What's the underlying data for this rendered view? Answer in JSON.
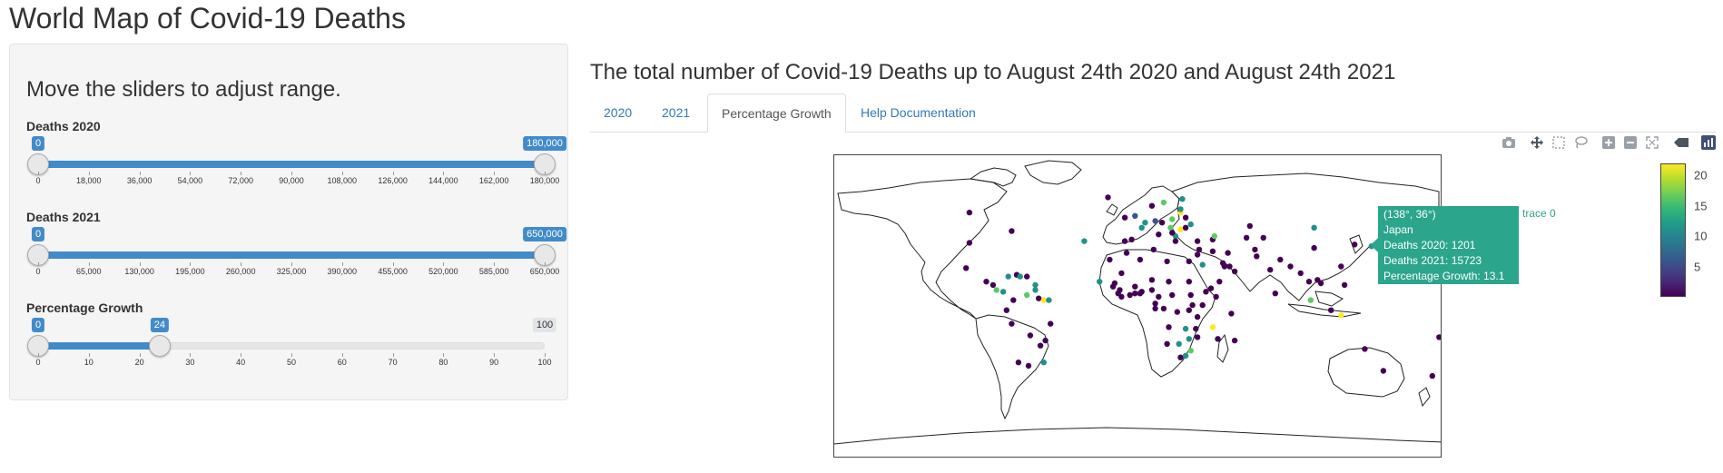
{
  "page": {
    "title": "World Map of Covid-19 Deaths"
  },
  "sidebar": {
    "heading": "Move the sliders to adjust range.",
    "sliders": [
      {
        "label": "Deaths 2020",
        "min": 0,
        "max": 180000,
        "from": 0,
        "to": 180000,
        "from_label": "0",
        "to_label": "180,000",
        "ticks": [
          "0",
          "18,000",
          "36,000",
          "54,000",
          "72,000",
          "90,000",
          "108,000",
          "126,000",
          "144,000",
          "162,000",
          "180,000"
        ]
      },
      {
        "label": "Deaths 2021",
        "min": 0,
        "max": 650000,
        "from": 0,
        "to": 650000,
        "from_label": "0",
        "to_label": "650,000",
        "ticks": [
          "0",
          "65,000",
          "130,000",
          "195,000",
          "260,000",
          "325,000",
          "390,000",
          "455,000",
          "520,000",
          "585,000",
          "650,000"
        ]
      },
      {
        "label": "Percentage Growth",
        "min": 0,
        "max": 100,
        "from": 0,
        "to": 24,
        "from_label": "0",
        "to_label": "24",
        "max_label": "100",
        "ticks": [
          "0",
          "10",
          "20",
          "30",
          "40",
          "50",
          "60",
          "70",
          "80",
          "90",
          "100"
        ]
      }
    ]
  },
  "main": {
    "heading": "The total number of Covid-19 Deaths up to August 24th 2020 and August 24th 2021",
    "tabs": [
      {
        "label": "2020",
        "active": false
      },
      {
        "label": "2021",
        "active": false
      },
      {
        "label": "Percentage Growth",
        "active": true
      },
      {
        "label": "Help Documentation",
        "active": false
      }
    ]
  },
  "modebar": {
    "icons": [
      "camera-icon",
      "pan-icon",
      "box-select-icon",
      "lasso-icon",
      "zoom-in-icon",
      "zoom-out-icon",
      "autoscale-icon",
      "hover-closest-icon",
      "plotly-logo-icon"
    ]
  },
  "chart_data": {
    "type": "scatter",
    "map": "world",
    "colorscale": "viridis",
    "color_range": [
      0,
      22
    ],
    "colorbar_ticks": [
      "20",
      "15",
      "10",
      "5"
    ],
    "colors": [
      "#440154",
      "#3b528b",
      "#21918c",
      "#5ec962",
      "#fde725"
    ],
    "points": [
      {
        "lon": -100,
        "lat": 56,
        "v": 1
      },
      {
        "lon": -75,
        "lat": 45,
        "v": 2
      },
      {
        "lon": -100,
        "lat": 38,
        "v": 1
      },
      {
        "lon": -102,
        "lat": 23,
        "v": 3
      },
      {
        "lon": -90,
        "lat": 15,
        "v": 2
      },
      {
        "lon": -86,
        "lat": 13,
        "v": 4
      },
      {
        "lon": -84,
        "lat": 10,
        "v": 14
      },
      {
        "lon": -80,
        "lat": 9,
        "v": 10
      },
      {
        "lon": -77,
        "lat": 18,
        "v": 11
      },
      {
        "lon": -72,
        "lat": 19,
        "v": 3
      },
      {
        "lon": -70,
        "lat": 18,
        "v": 12
      },
      {
        "lon": -66,
        "lat": 18,
        "v": 1
      },
      {
        "lon": -61,
        "lat": 13,
        "v": 9
      },
      {
        "lon": -61,
        "lat": 10,
        "v": 12
      },
      {
        "lon": -66,
        "lat": 7,
        "v": 14
      },
      {
        "lon": -74,
        "lat": 4,
        "v": 1
      },
      {
        "lon": -59,
        "lat": 5,
        "v": 2
      },
      {
        "lon": -56,
        "lat": 4,
        "v": 21
      },
      {
        "lon": -53,
        "lat": 4,
        "v": 10
      },
      {
        "lon": -78,
        "lat": -2,
        "v": 2
      },
      {
        "lon": -75,
        "lat": -10,
        "v": 1
      },
      {
        "lon": -64,
        "lat": -17,
        "v": 1
      },
      {
        "lon": -52,
        "lat": -10,
        "v": 1
      },
      {
        "lon": -58,
        "lat": -23,
        "v": 1
      },
      {
        "lon": -65,
        "lat": -35,
        "v": 1
      },
      {
        "lon": -56,
        "lat": -33,
        "v": 12
      },
      {
        "lon": -71,
        "lat": -33,
        "v": 1
      },
      {
        "lon": -55,
        "lat": -20,
        "v": 3
      },
      {
        "lon": -18,
        "lat": 65,
        "v": 1
      },
      {
        "lon": -8,
        "lat": 53,
        "v": 1
      },
      {
        "lon": -2,
        "lat": 54,
        "v": 5
      },
      {
        "lon": -4,
        "lat": 40,
        "v": 1
      },
      {
        "lon": -8,
        "lat": 39,
        "v": 3
      },
      {
        "lon": 2,
        "lat": 47,
        "v": 10
      },
      {
        "lon": 4,
        "lat": 50,
        "v": 12
      },
      {
        "lon": 10,
        "lat": 51,
        "v": 7
      },
      {
        "lon": 12,
        "lat": 43,
        "v": 4
      },
      {
        "lon": 8,
        "lat": 60,
        "v": 1
      },
      {
        "lon": 15,
        "lat": 62,
        "v": 14
      },
      {
        "lon": 26,
        "lat": 64,
        "v": 9
      },
      {
        "lon": 20,
        "lat": 52,
        "v": 16
      },
      {
        "lon": 25,
        "lat": 56,
        "v": 20
      },
      {
        "lon": 25,
        "lat": 58,
        "v": 11
      },
      {
        "lon": 14,
        "lat": 50,
        "v": 1
      },
      {
        "lon": 19,
        "lat": 47,
        "v": 15
      },
      {
        "lon": 25,
        "lat": 46,
        "v": 22
      },
      {
        "lon": 22,
        "lat": 42,
        "v": 9
      },
      {
        "lon": 20,
        "lat": 44,
        "v": 1
      },
      {
        "lon": 28,
        "lat": 47,
        "v": 1
      },
      {
        "lon": 31,
        "lat": 49,
        "v": 13
      },
      {
        "lon": 28,
        "lat": 53,
        "v": 1
      },
      {
        "lon": 22,
        "lat": 39,
        "v": 1
      },
      {
        "lon": 35,
        "lat": 39,
        "v": 1
      },
      {
        "lon": 44,
        "lat": 40,
        "v": 1
      },
      {
        "lon": 45,
        "lat": 42,
        "v": 14
      },
      {
        "lon": 53,
        "lat": 32,
        "v": 1
      },
      {
        "lon": 44,
        "lat": 33,
        "v": 1
      },
      {
        "lon": 36,
        "lat": 34,
        "v": 1
      },
      {
        "lon": 35,
        "lat": 31,
        "v": 1
      },
      {
        "lon": 38,
        "lat": 25,
        "v": 12
      },
      {
        "lon": 50,
        "lat": 26,
        "v": 1
      },
      {
        "lon": 51,
        "lat": 24,
        "v": 1
      },
      {
        "lon": 54,
        "lat": 24,
        "v": 1
      },
      {
        "lon": 57,
        "lat": 21,
        "v": 1
      },
      {
        "lon": 48,
        "lat": 15,
        "v": 1
      },
      {
        "lon": 66,
        "lat": 48,
        "v": 1
      },
      {
        "lon": 64,
        "lat": 41,
        "v": 1
      },
      {
        "lon": 74,
        "lat": 41,
        "v": 1
      },
      {
        "lon": 69,
        "lat": 34,
        "v": 1
      },
      {
        "lon": 70,
        "lat": 30,
        "v": 1
      },
      {
        "lon": 78,
        "lat": 22,
        "v": 1
      },
      {
        "lon": 84,
        "lat": 28,
        "v": 1
      },
      {
        "lon": 90,
        "lat": 24,
        "v": 1
      },
      {
        "lon": 81,
        "lat": 8,
        "v": 1
      },
      {
        "lon": 96,
        "lat": 20,
        "v": 1
      },
      {
        "lon": 104,
        "lat": 35,
        "v": 1
      },
      {
        "lon": 104,
        "lat": 47,
        "v": 12
      },
      {
        "lon": 101,
        "lat": 15,
        "v": 1
      },
      {
        "lon": 106,
        "lat": 16,
        "v": 1
      },
      {
        "lon": 108,
        "lat": 14,
        "v": 1
      },
      {
        "lon": 102,
        "lat": 4,
        "v": 16
      },
      {
        "lon": 122,
        "lat": 13,
        "v": 2
      },
      {
        "lon": 114,
        "lat": -2,
        "v": 1
      },
      {
        "lon": 120,
        "lat": -5,
        "v": 21
      },
      {
        "lon": 120,
        "lat": 24,
        "v": 1
      },
      {
        "lon": 128,
        "lat": 37,
        "v": 1
      },
      {
        "lon": 138,
        "lat": 36,
        "v": 13
      },
      {
        "lon": 134,
        "lat": -25,
        "v": 1
      },
      {
        "lon": 145,
        "lat": -38,
        "v": 1
      },
      {
        "lon": 174,
        "lat": -41,
        "v": 1
      },
      {
        "lon": 178,
        "lat": -18,
        "v": 2
      },
      {
        "lon": 1,
        "lat": 28,
        "v": 1
      },
      {
        "lon": 9,
        "lat": 34,
        "v": 1
      },
      {
        "lon": 17,
        "lat": 27,
        "v": 1
      },
      {
        "lon": 30,
        "lat": 27,
        "v": 1
      },
      {
        "lon": -7,
        "lat": 32,
        "v": 1
      },
      {
        "lon": -10,
        "lat": 20,
        "v": 1
      },
      {
        "lon": -14,
        "lat": 14,
        "v": 1
      },
      {
        "lon": -15,
        "lat": 12,
        "v": 1
      },
      {
        "lon": -11,
        "lat": 10,
        "v": 1
      },
      {
        "lon": -12,
        "lat": 8,
        "v": 1
      },
      {
        "lon": -10,
        "lat": 6,
        "v": 1
      },
      {
        "lon": -5,
        "lat": 7,
        "v": 1
      },
      {
        "lon": -2,
        "lat": 8,
        "v": 1
      },
      {
        "lon": 1,
        "lat": 8,
        "v": 1
      },
      {
        "lon": 2,
        "lat": 9,
        "v": 1
      },
      {
        "lon": -2,
        "lat": 12,
        "v": 1
      },
      {
        "lon": 8,
        "lat": 10,
        "v": 1
      },
      {
        "lon": 8,
        "lat": 16,
        "v": 1
      },
      {
        "lon": 18,
        "lat": 15,
        "v": 1
      },
      {
        "lon": 12,
        "lat": 6,
        "v": 1
      },
      {
        "lon": 20,
        "lat": 7,
        "v": 1
      },
      {
        "lon": 30,
        "lat": 15,
        "v": 1
      },
      {
        "lon": 31,
        "lat": 7,
        "v": 1
      },
      {
        "lon": 40,
        "lat": 9,
        "v": 1
      },
      {
        "lon": 43,
        "lat": 11,
        "v": 1
      },
      {
        "lon": 46,
        "lat": 6,
        "v": 1
      },
      {
        "lon": 38,
        "lat": 1,
        "v": 1
      },
      {
        "lon": 32,
        "lat": 1,
        "v": 1
      },
      {
        "lon": 30,
        "lat": -2,
        "v": 1
      },
      {
        "lon": 35,
        "lat": -6,
        "v": 1
      },
      {
        "lon": 23,
        "lat": -3,
        "v": 1
      },
      {
        "lon": 15,
        "lat": -1,
        "v": 1
      },
      {
        "lon": 10,
        "lat": -1,
        "v": 1
      },
      {
        "lon": 10,
        "lat": 2,
        "v": 1
      },
      {
        "lon": 18,
        "lat": -12,
        "v": 1
      },
      {
        "lon": 28,
        "lat": -13,
        "v": 13
      },
      {
        "lon": 34,
        "lat": -13,
        "v": 1
      },
      {
        "lon": 35,
        "lat": -18,
        "v": 1
      },
      {
        "lon": 30,
        "lat": -19,
        "v": 12
      },
      {
        "lon": 24,
        "lat": -22,
        "v": 12
      },
      {
        "lon": 17,
        "lat": -22,
        "v": 1
      },
      {
        "lon": 25,
        "lat": -30,
        "v": 1
      },
      {
        "lon": 31,
        "lat": -26,
        "v": 14
      },
      {
        "lon": 28,
        "lat": -29,
        "v": 12
      },
      {
        "lon": 47,
        "lat": -19,
        "v": 1
      },
      {
        "lon": 44,
        "lat": -12,
        "v": 21
      },
      {
        "lon": 57,
        "lat": -20,
        "v": 1
      },
      {
        "lon": 55,
        "lat": -4,
        "v": 1
      },
      {
        "lon": -23,
        "lat": 15,
        "v": 10
      },
      {
        "lon": -17,
        "lat": 28,
        "v": 1
      },
      {
        "lon": -32,
        "lat": 39,
        "v": 11
      }
    ],
    "tooltip": {
      "coords": "(138°, 36°)",
      "country": "Japan",
      "deaths_2020": "Deaths 2020: 1201",
      "deaths_2021": "Deaths 2021: 15723",
      "growth": "Percentage Growth: 13.1",
      "trace": "trace 0"
    }
  }
}
